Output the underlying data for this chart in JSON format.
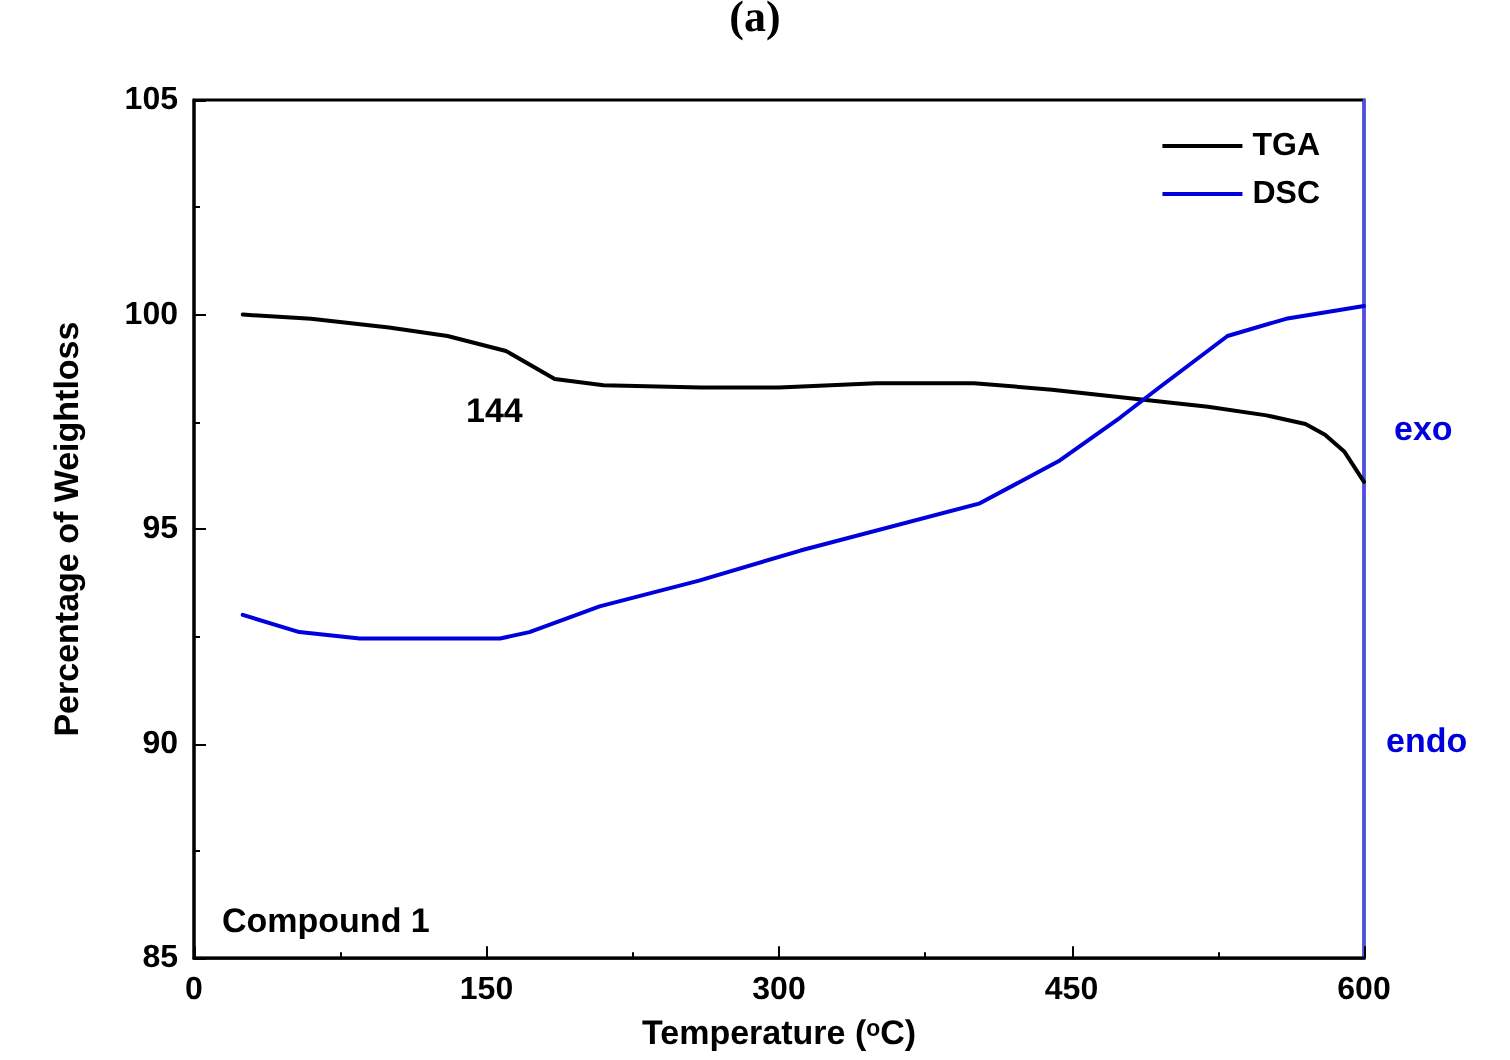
{
  "chart_data": {
    "type": "line",
    "title": "(a)",
    "xlabel": "Temperature (ᵒC)",
    "ylabel": "Percentage of Weightloss",
    "xlim": [
      0,
      600
    ],
    "xticks": [
      0,
      150,
      300,
      450,
      600
    ],
    "ylim": [
      85,
      105
    ],
    "yticks": [
      85,
      90,
      95,
      100,
      105
    ],
    "grid": false,
    "legend": "top right",
    "marker": "none",
    "line_style": "solid",
    "annotations": [
      "144",
      "Compound 1",
      "exo",
      "endo"
    ],
    "series": [
      {
        "name": "TGA",
        "color": "#000000",
        "x": [
          25,
          60,
          100,
          130,
          160,
          185,
          210,
          260,
          300,
          350,
          400,
          440,
          480,
          520,
          550,
          570,
          580,
          590,
          600
        ],
        "values": [
          100.0,
          99.9,
          99.7,
          99.5,
          99.15,
          98.5,
          98.35,
          98.3,
          98.3,
          98.4,
          98.4,
          98.25,
          98.05,
          97.85,
          97.65,
          97.45,
          97.2,
          96.8,
          96.1
        ]
      },
      {
        "name": "DSC",
        "color": "#0000dd",
        "x": [
          25,
          54,
          85,
          157,
          172,
          193,
          208,
          259,
          311,
          403,
          444,
          475,
          495,
          530,
          560,
          600
        ],
        "values": [
          93.0,
          92.6,
          92.45,
          92.45,
          92.6,
          92.95,
          93.2,
          93.8,
          94.5,
          95.6,
          96.6,
          97.6,
          98.3,
          99.5,
          99.9,
          100.2
        ]
      }
    ]
  }
}
